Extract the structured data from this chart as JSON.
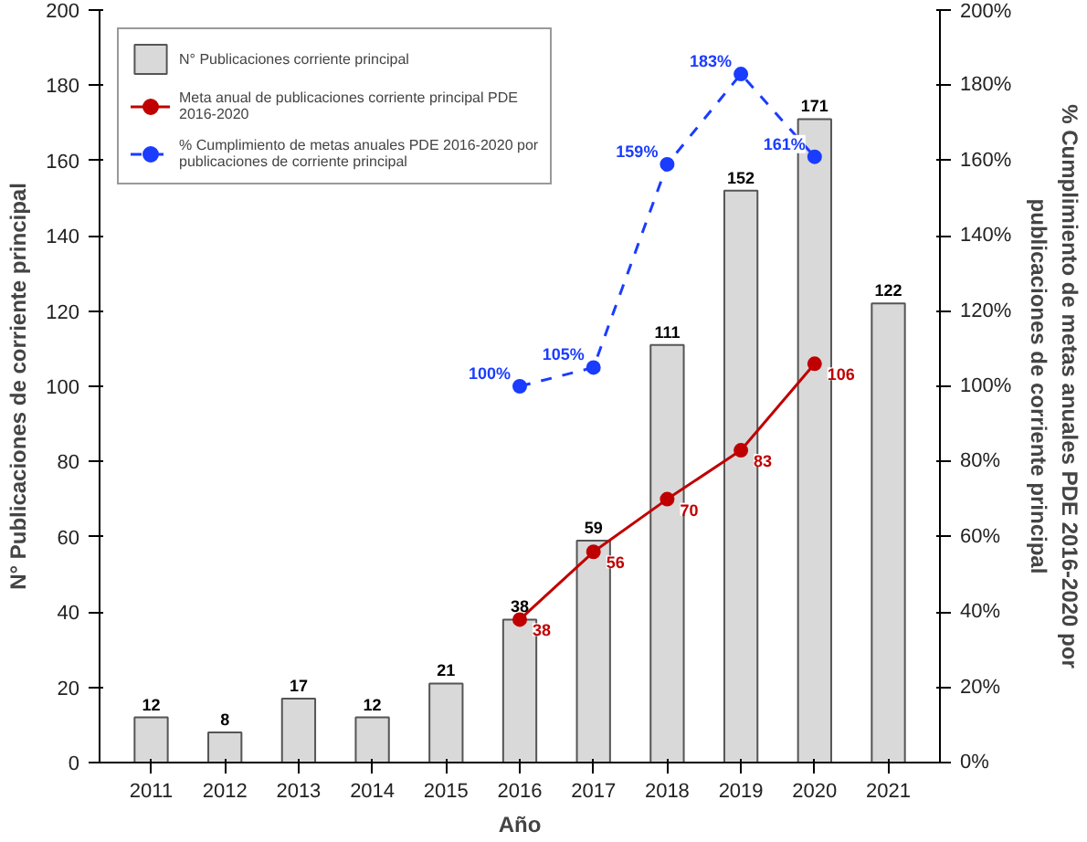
{
  "chart_data": {
    "type": "bar",
    "xlabel": "Año",
    "ylabel": "N° Publicaciones de corriente principal",
    "y2label": "% Cumplimiento de metas anuales PDE 2016-2020 por publicaciones de corriente principal",
    "categories": [
      "2011",
      "2012",
      "2013",
      "2014",
      "2015",
      "2016",
      "2017",
      "2018",
      "2019",
      "2020",
      "2021"
    ],
    "series": [
      {
        "name": "N° Publicaciones corriente principal",
        "color": "#d9d9d9",
        "values": [
          12,
          8,
          17,
          12,
          21,
          38,
          59,
          111,
          152,
          171,
          122
        ],
        "value_labels": [
          "12",
          "8",
          "17",
          "12",
          "21",
          "38",
          "59",
          "111",
          "152",
          "171",
          "122"
        ]
      },
      {
        "name": "Meta anual de publicaciones corriente principal PDE 2016-2020",
        "type": "line",
        "color": "#c00000",
        "marker": "circle",
        "line_style": "solid",
        "values": [
          null,
          null,
          null,
          null,
          null,
          38,
          56,
          70,
          83,
          106,
          null
        ],
        "value_labels": [
          null,
          null,
          null,
          null,
          null,
          "38",
          "56",
          "70",
          "83",
          "106",
          null
        ]
      },
      {
        "name": "% Cumplimiento de metas anuales PDE 2016-2020 por publicaciones de corriente principal",
        "type": "line",
        "axis": "y2",
        "color": "#1a3cff",
        "marker": "circle",
        "line_style": "dashed",
        "values": [
          null,
          null,
          null,
          null,
          null,
          100,
          105,
          159,
          183,
          161,
          null
        ],
        "value_labels": [
          null,
          null,
          null,
          null,
          null,
          "100%",
          "105%",
          "159%",
          "183%",
          "161%",
          null
        ]
      }
    ],
    "ylim": [
      0,
      200
    ],
    "yticks": [
      0,
      20,
      40,
      60,
      80,
      100,
      120,
      140,
      160,
      180,
      200
    ],
    "y2lim": [
      0,
      200
    ],
    "y2ticks": [
      {
        "value": 0,
        "label": "0%"
      },
      {
        "value": 20,
        "label": "20%"
      },
      {
        "value": 40,
        "label": "40%"
      },
      {
        "value": 60,
        "label": "60%"
      },
      {
        "value": 80,
        "label": "80%"
      },
      {
        "value": 100,
        "label": "100%"
      },
      {
        "value": 120,
        "label": "120%"
      },
      {
        "value": 140,
        "label": "140%"
      },
      {
        "value": 160,
        "label": "160%"
      },
      {
        "value": 180,
        "label": "180%"
      },
      {
        "value": 200,
        "label": "200%"
      }
    ],
    "grid": false,
    "legend": "top left"
  }
}
